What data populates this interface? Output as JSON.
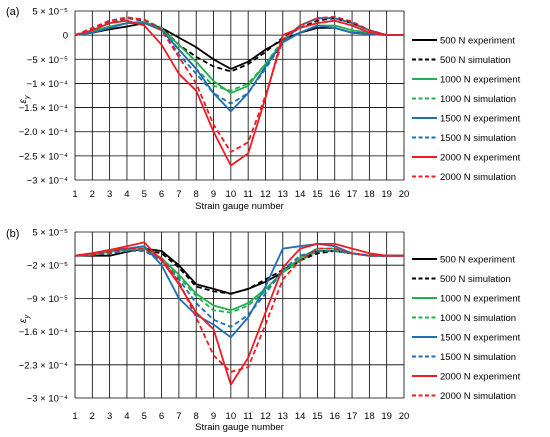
{
  "charts": [
    {
      "panel_label": "(a)",
      "type": "line",
      "xlabel": "Strain gauge number",
      "ylabel": "ε",
      "ylabel_sub": "y",
      "x": [
        1,
        2,
        3,
        4,
        5,
        6,
        7,
        8,
        9,
        10,
        11,
        12,
        13,
        14,
        15,
        16,
        17,
        18,
        19,
        20
      ],
      "yticks": [
        {
          "value": 5e-05,
          "label": "5 × 10⁻⁵"
        },
        {
          "value": 0,
          "label": "0"
        },
        {
          "value": -5e-05,
          "label": "−5 × 10⁻⁵"
        },
        {
          "value": -0.0001,
          "label": "−1 × 10⁻⁴"
        },
        {
          "value": -0.00015,
          "label": "−1.5 × 10⁻⁴"
        },
        {
          "value": -0.0002,
          "label": "−2.0 × 10⁻⁴"
        },
        {
          "value": -0.00025,
          "label": "−2.5 × 10⁻⁴"
        },
        {
          "value": -0.0003,
          "label": "−3 × 10⁻⁴"
        }
      ],
      "ylim": [
        -0.0003,
        5e-05
      ],
      "grid": true,
      "legend_position": "right",
      "series": [
        {
          "name": "500 N experiment",
          "color": "#000000",
          "dash": "solid",
          "values": [
            0,
            5e-06,
            1.2e-05,
            1.8e-05,
            2.5e-05,
            1.5e-05,
            -5e-06,
            -2.5e-05,
            -5e-05,
            -7e-05,
            -5.5e-05,
            -3e-05,
            -1e-05,
            5e-06,
            1.5e-05,
            1.5e-05,
            5e-06,
            3e-06,
            0,
            0
          ]
        },
        {
          "name": "500 N simulation",
          "color": "#000000",
          "dash": "dashed",
          "values": [
            0,
            1e-05,
            2.5e-05,
            3.5e-05,
            3e-05,
            1.5e-05,
            -2e-05,
            -4.5e-05,
            -6.5e-05,
            -7.5e-05,
            -6e-05,
            -3.5e-05,
            -5e-06,
            1.5e-05,
            3e-05,
            3.5e-05,
            2.5e-05,
            1e-05,
            0,
            0
          ]
        },
        {
          "name": "1000 N experiment",
          "color": "#22b14c",
          "dash": "solid",
          "values": [
            0,
            8e-06,
            1.8e-05,
            2.5e-05,
            2.8e-05,
            1.2e-05,
            -2e-05,
            -5.5e-05,
            -9.5e-05,
            -0.00012,
            -0.000105,
            -6e-05,
            -1.5e-05,
            5e-06,
            2e-05,
            2e-05,
            1e-05,
            5e-06,
            0,
            0
          ]
        },
        {
          "name": "1000 N simulation",
          "color": "#22b14c",
          "dash": "dashed",
          "values": [
            0,
            1.2e-05,
            2.8e-05,
            3.5e-05,
            3.2e-05,
            1.5e-05,
            -3e-05,
            -7e-05,
            -0.000105,
            -0.000115,
            -0.0001,
            -6e-05,
            -1e-05,
            2e-05,
            3.5e-05,
            3.5e-05,
            2.5e-05,
            1e-05,
            0,
            0
          ]
        },
        {
          "name": "1500 N experiment",
          "color": "#1f6fb5",
          "dash": "solid",
          "values": [
            0,
            5e-06,
            1.5e-05,
            2.5e-05,
            2.5e-05,
            1e-05,
            -3e-05,
            -7e-05,
            -0.00012,
            -0.000158,
            -0.00012,
            -6.5e-05,
            -1.5e-05,
            5e-06,
            2e-05,
            1.5e-05,
            5e-06,
            2e-06,
            0,
            0
          ]
        },
        {
          "name": "1500 N simulation",
          "color": "#1f6fb5",
          "dash": "dashed",
          "values": [
            0,
            1.2e-05,
            2.8e-05,
            3.5e-05,
            3.2e-05,
            1.2e-05,
            -4e-05,
            -8e-05,
            -0.00012,
            -0.000142,
            -0.00012,
            -7e-05,
            -1.5e-05,
            2e-05,
            3.5e-05,
            3.5e-05,
            2.5e-05,
            1e-05,
            0,
            0
          ]
        },
        {
          "name": "2000 N experiment",
          "color": "#ee1c24",
          "dash": "solid",
          "values": [
            0,
            1e-05,
            2.5e-05,
            3e-05,
            2e-05,
            -2e-05,
            -8e-05,
            -0.000115,
            -0.0002,
            -0.00027,
            -0.000245,
            -0.00013,
            0,
            1.5e-05,
            2.5e-05,
            3e-05,
            2e-05,
            5e-06,
            0,
            0
          ]
        },
        {
          "name": "2000 N simulation",
          "color": "#ee1c24",
          "dash": "dashed",
          "values": [
            0,
            1.5e-05,
            3e-05,
            3.7e-05,
            3.2e-05,
            1e-05,
            -4.5e-05,
            -0.0001,
            -0.000185,
            -0.000242,
            -0.000222,
            -0.000125,
            -1e-05,
            2e-05,
            3.5e-05,
            3.8e-05,
            2.8e-05,
            1e-05,
            0,
            0
          ]
        }
      ]
    },
    {
      "panel_label": "(b)",
      "type": "line",
      "xlabel": "Strain gauge number",
      "ylabel": "ε",
      "ylabel_sub": "y",
      "x": [
        1,
        2,
        3,
        4,
        5,
        6,
        7,
        8,
        9,
        10,
        11,
        12,
        13,
        14,
        15,
        16,
        17,
        18,
        19,
        20
      ],
      "yticks": [
        {
          "value": 5e-05,
          "label": "5 × 10⁻⁵"
        },
        {
          "value": -2e-05,
          "label": "−2 × 10⁻⁵"
        },
        {
          "value": -9e-05,
          "label": "−9 × 10⁻⁵"
        },
        {
          "value": -0.00016,
          "label": "−1.6 × 10⁻⁴"
        },
        {
          "value": -0.00023,
          "label": "−2.3 × 10⁻⁴"
        },
        {
          "value": -0.0003,
          "label": "−3 × 10⁻⁴"
        }
      ],
      "ylim": [
        -0.0003,
        5e-05
      ],
      "grid": true,
      "legend_position": "right",
      "series": [
        {
          "name": "500 N experiment",
          "color": "#000000",
          "dash": "solid",
          "values": [
            0,
            0,
            0,
            8e-06,
            1.5e-05,
            1e-05,
            -2e-05,
            -6e-05,
            -7e-05,
            -8e-05,
            -7e-05,
            -5.5e-05,
            -3.5e-05,
            -1e-05,
            1e-05,
            1e-05,
            5e-06,
            0,
            0,
            0
          ]
        },
        {
          "name": "500 N simulation",
          "color": "#000000",
          "dash": "dashed",
          "values": [
            0,
            2e-06,
            5e-06,
            1e-05,
            1.2e-05,
            5e-06,
            -2.5e-05,
            -6.5e-05,
            -7.5e-05,
            -8e-05,
            -7e-05,
            -5e-05,
            -3e-05,
            -1e-05,
            5e-06,
            1e-05,
            5e-06,
            0,
            0,
            0
          ]
        },
        {
          "name": "1000 N experiment",
          "color": "#22b14c",
          "dash": "solid",
          "values": [
            0,
            2e-06,
            8e-06,
            1.2e-05,
            1.5e-05,
            -5e-06,
            -4e-05,
            -8e-05,
            -0.000105,
            -0.000115,
            -0.0001,
            -7e-05,
            -3.5e-05,
            -5e-06,
            1.5e-05,
            1.5e-05,
            5e-06,
            0,
            0,
            0
          ]
        },
        {
          "name": "1000 N simulation",
          "color": "#22b14c",
          "dash": "dashed",
          "values": [
            0,
            2e-06,
            8e-06,
            1.2e-05,
            1.2e-05,
            -5e-06,
            -4.5e-05,
            -8.5e-05,
            -0.000115,
            -0.00012,
            -0.000105,
            -7.5e-05,
            -3.5e-05,
            -1e-05,
            1e-05,
            1e-05,
            5e-06,
            0,
            0,
            0
          ]
        },
        {
          "name": "1500 N experiment",
          "color": "#1f6fb5",
          "dash": "solid",
          "values": [
            0,
            5e-06,
            1.2e-05,
            1.5e-05,
            2e-05,
            -2e-05,
            -9e-05,
            -0.000125,
            -0.000145,
            -0.000172,
            -0.00013,
            -6.5e-05,
            1.5e-05,
            2e-05,
            2.5e-05,
            2e-05,
            5e-06,
            0,
            0,
            0
          ]
        },
        {
          "name": "1500 N simulation",
          "color": "#1f6fb5",
          "dash": "dashed",
          "values": [
            0,
            2e-06,
            5e-06,
            1e-05,
            1e-05,
            -1e-05,
            -5e-05,
            -0.0001,
            -0.000135,
            -0.00015,
            -0.000125,
            -8e-05,
            -3e-05,
            0,
            1e-05,
            1e-05,
            5e-06,
            0,
            0,
            0
          ]
        },
        {
          "name": "2000 N experiment",
          "color": "#ee1c24",
          "dash": "solid",
          "values": [
            0,
            5e-06,
            1.2e-05,
            2e-05,
            2.8e-05,
            -1e-05,
            -6e-05,
            -0.00012,
            -0.000155,
            -0.000272,
            -0.000215,
            -0.00012,
            -2.5e-05,
            1.5e-05,
            2.5e-05,
            2.5e-05,
            1.5e-05,
            5e-06,
            0,
            0
          ]
        },
        {
          "name": "2000 N simulation",
          "color": "#ee1c24",
          "dash": "dashed",
          "values": [
            0,
            2e-06,
            8e-06,
            1.5e-05,
            1.5e-05,
            -5e-06,
            -5.5e-05,
            -0.00013,
            -0.00021,
            -0.000245,
            -0.000235,
            -0.000145,
            -5e-05,
            -1e-05,
            1.5e-05,
            1.5e-05,
            5e-06,
            0,
            0,
            0
          ]
        }
      ]
    }
  ]
}
